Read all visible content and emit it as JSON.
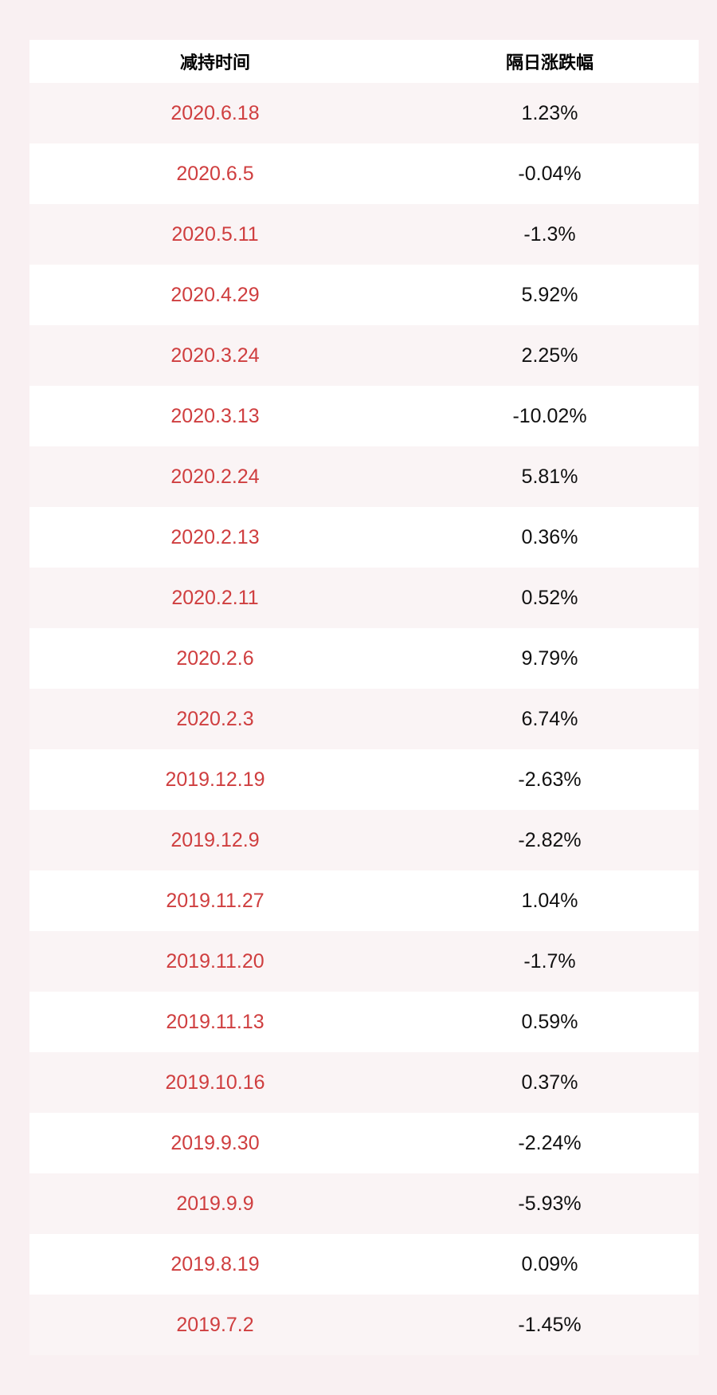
{
  "chart_data": {
    "type": "table",
    "columns": [
      "减持时间",
      "隔日涨跌幅"
    ],
    "rows": [
      [
        "2020.6.18",
        "1.23%"
      ],
      [
        "2020.6.5",
        "-0.04%"
      ],
      [
        "2020.5.11",
        "-1.3%"
      ],
      [
        "2020.4.29",
        "5.92%"
      ],
      [
        "2020.3.24",
        "2.25%"
      ],
      [
        "2020.3.13",
        "-10.02%"
      ],
      [
        "2020.2.24",
        "5.81%"
      ],
      [
        "2020.2.13",
        "0.36%"
      ],
      [
        "2020.2.11",
        "0.52%"
      ],
      [
        "2020.2.6",
        "9.79%"
      ],
      [
        "2020.2.3",
        "6.74%"
      ],
      [
        "2019.12.19",
        "-2.63%"
      ],
      [
        "2019.12.9",
        "-2.82%"
      ],
      [
        "2019.11.27",
        "1.04%"
      ],
      [
        "2019.11.20",
        "-1.7%"
      ],
      [
        "2019.11.13",
        "0.59%"
      ],
      [
        "2019.10.16",
        "0.37%"
      ],
      [
        "2019.9.30",
        "-2.24%"
      ],
      [
        "2019.9.9",
        "-5.93%"
      ],
      [
        "2019.8.19",
        "0.09%"
      ],
      [
        "2019.7.2",
        "-1.45%"
      ]
    ],
    "layout": {
      "striped": true,
      "first_data_row_stripe": "pink",
      "header_stripe": "white"
    }
  },
  "colors": {
    "page_background": "#f9f0f2",
    "header_background": "#ffffff",
    "header_text": "#000000",
    "row_pink": "#faf4f5",
    "row_white": "#ffffff",
    "date_text": "#cf3e3f",
    "value_text": "#111111"
  }
}
